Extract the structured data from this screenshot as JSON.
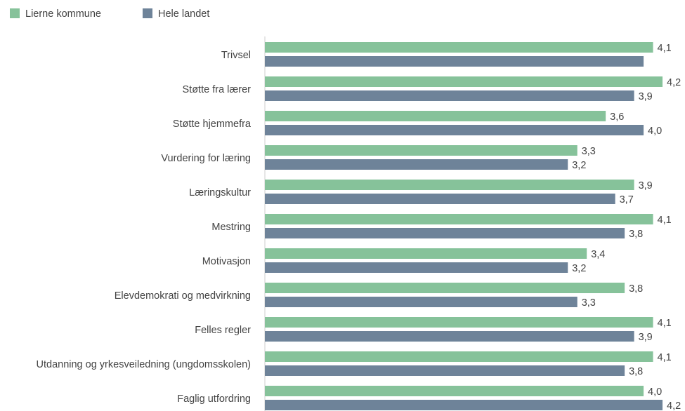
{
  "chart_data": {
    "type": "bar",
    "orientation": "horizontal",
    "categories": [
      "Trivsel",
      "Støtte fra lærer",
      "Støtte hjemmefra",
      "Vurdering for læring",
      "Læringskultur",
      "Mestring",
      "Motivasjon",
      "Elevdemokrati og medvirkning",
      "Felles regler",
      "Utdanning og yrkesveiledning (ungdomsskolen)",
      "Faglig utfordring"
    ],
    "series": [
      {
        "name": "Lierne kommune",
        "color": "#86c29a",
        "values": [
          4.1,
          4.2,
          3.6,
          3.3,
          3.9,
          4.1,
          3.4,
          3.8,
          4.1,
          4.1,
          4.0
        ],
        "value_labels": [
          "4,1",
          "4,2",
          "3,6",
          "3,3",
          "3,9",
          "4,1",
          "3,4",
          "3,8",
          "4,1",
          "4,1",
          "4,0"
        ]
      },
      {
        "name": "Hele landet",
        "color": "#6e8399",
        "values": [
          4.0,
          3.9,
          4.0,
          3.2,
          3.7,
          3.8,
          3.2,
          3.3,
          3.9,
          3.8,
          4.2
        ],
        "value_labels": [
          null,
          "3,9",
          "4,0",
          "3,2",
          "3,7",
          "3,8",
          "3,2",
          "3,3",
          "3,9",
          "3,8",
          "4,2"
        ]
      }
    ],
    "legend": "top-left"
  }
}
